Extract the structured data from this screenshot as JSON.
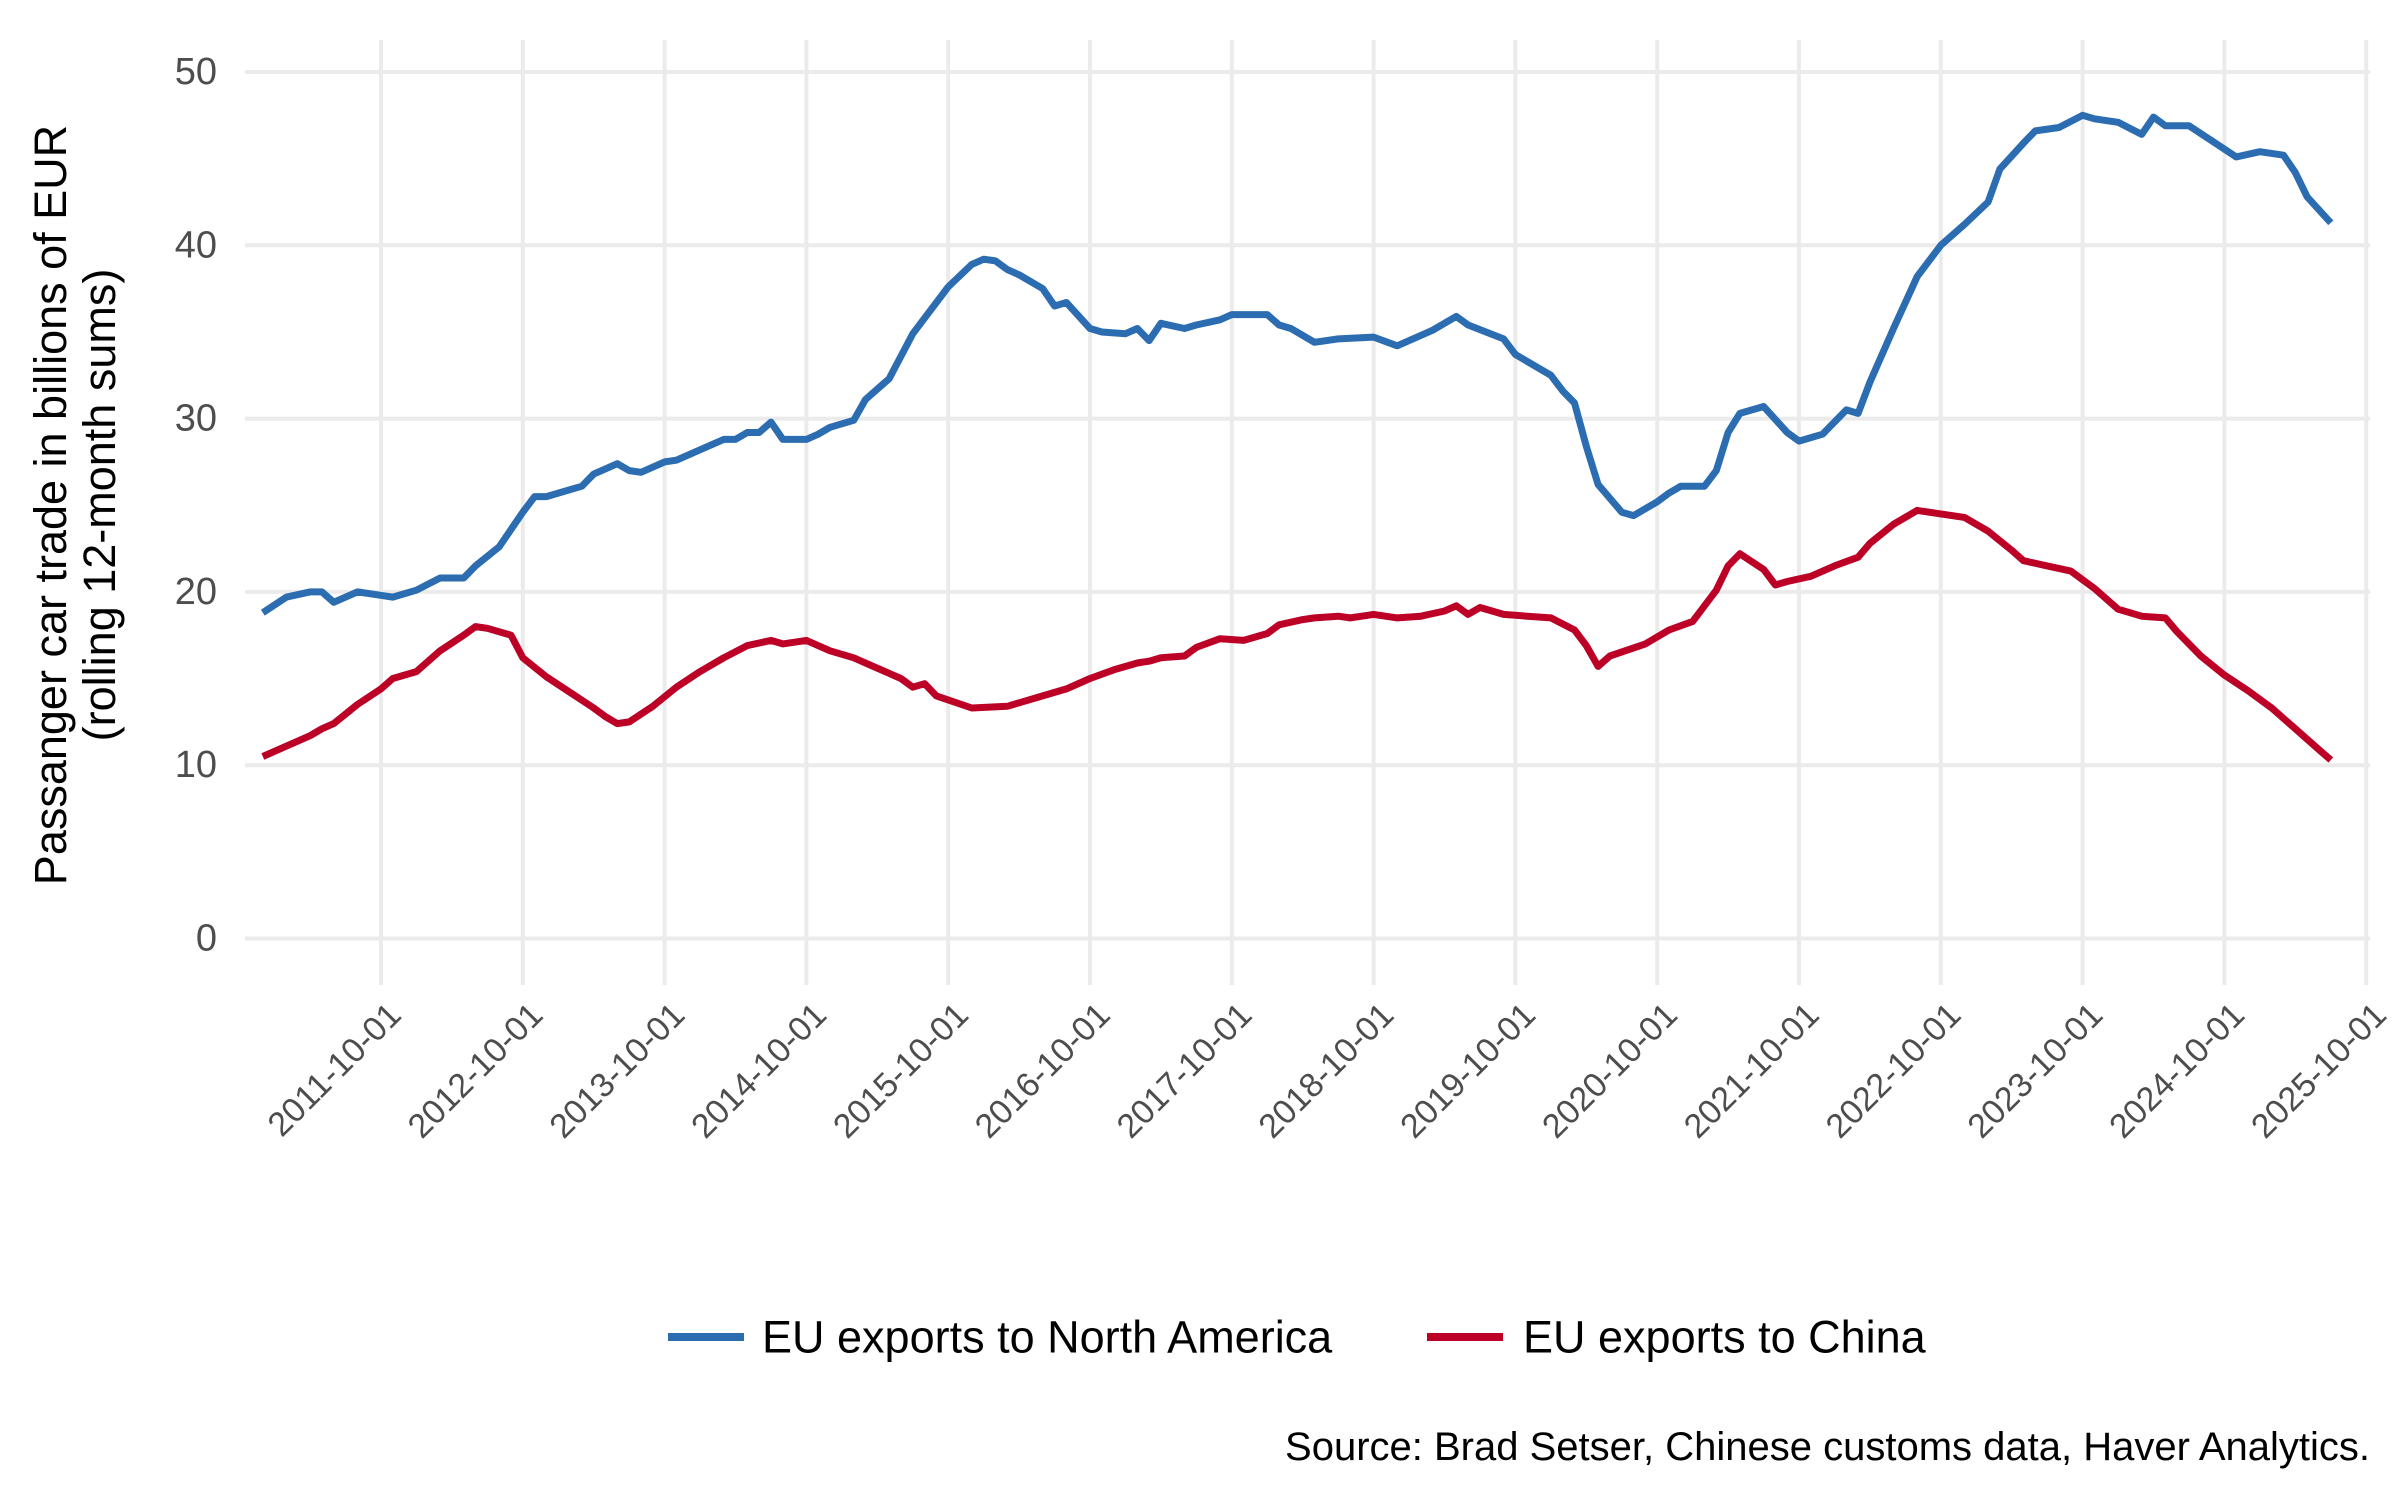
{
  "chart_data": {
    "type": "line",
    "title": "",
    "xlabel": "",
    "ylabel": [
      "Passanger car trade in billions of EUR",
      "(rolling 12-month sums)"
    ],
    "ylim": [
      0,
      50
    ],
    "yticks": [
      "0",
      "10",
      "20",
      "30",
      "40",
      "50"
    ],
    "xticks": [
      "2011-10-01",
      "2012-10-01",
      "2013-10-01",
      "2014-10-01",
      "2015-10-01",
      "2016-10-01",
      "2017-10-01",
      "2018-10-01",
      "2019-10-01",
      "2020-10-01",
      "2021-10-01",
      "2022-10-01",
      "2023-10-01",
      "2024-10-01",
      "2025-10-01"
    ],
    "grid": true,
    "legend_position": "bottom",
    "caption": "Source: Brad Setser, Chinese customs data, Haver Analytics.",
    "series": [
      {
        "name": "EU exports to North America",
        "color": "#2c6db2",
        "points": [
          [
            "2010-12",
            18.8
          ],
          [
            "2011-02",
            19.7
          ],
          [
            "2011-04",
            20.0
          ],
          [
            "2011-05",
            20.0
          ],
          [
            "2011-06",
            19.4
          ],
          [
            "2011-08",
            20.0
          ],
          [
            "2011-11",
            19.7
          ],
          [
            "2012-01",
            20.1
          ],
          [
            "2012-03",
            20.8
          ],
          [
            "2012-05",
            20.8
          ],
          [
            "2012-06",
            21.5
          ],
          [
            "2012-08",
            22.6
          ],
          [
            "2012-10",
            24.6
          ],
          [
            "2012-11",
            25.5
          ],
          [
            "2012-12",
            25.5
          ],
          [
            "2013-03",
            26.1
          ],
          [
            "2013-04",
            26.8
          ],
          [
            "2013-06",
            27.4
          ],
          [
            "2013-07",
            27.0
          ],
          [
            "2013-08",
            26.9
          ],
          [
            "2013-10",
            27.5
          ],
          [
            "2013-11",
            27.6
          ],
          [
            "2014-01",
            28.2
          ],
          [
            "2014-03",
            28.8
          ],
          [
            "2014-04",
            28.8
          ],
          [
            "2014-05",
            29.2
          ],
          [
            "2014-06",
            29.2
          ],
          [
            "2014-07",
            29.8
          ],
          [
            "2014-08",
            28.8
          ],
          [
            "2014-10",
            28.8
          ],
          [
            "2014-11",
            29.1
          ],
          [
            "2014-12",
            29.5
          ],
          [
            "2015-02",
            29.9
          ],
          [
            "2015-03",
            31.1
          ],
          [
            "2015-05",
            32.3
          ],
          [
            "2015-07",
            34.9
          ],
          [
            "2015-10",
            37.6
          ],
          [
            "2015-12",
            38.9
          ],
          [
            "2016-01",
            39.2
          ],
          [
            "2016-02",
            39.1
          ],
          [
            "2016-03",
            38.6
          ],
          [
            "2016-04",
            38.3
          ],
          [
            "2016-06",
            37.5
          ],
          [
            "2016-07",
            36.5
          ],
          [
            "2016-08",
            36.7
          ],
          [
            "2016-10",
            35.2
          ],
          [
            "2016-11",
            35.0
          ],
          [
            "2017-01",
            34.9
          ],
          [
            "2017-02",
            35.2
          ],
          [
            "2017-03",
            34.5
          ],
          [
            "2017-04",
            35.5
          ],
          [
            "2017-06",
            35.2
          ],
          [
            "2017-07",
            35.4
          ],
          [
            "2017-09",
            35.7
          ],
          [
            "2017-10",
            36.0
          ],
          [
            "2018-01",
            36.0
          ],
          [
            "2018-02",
            35.4
          ],
          [
            "2018-03",
            35.2
          ],
          [
            "2018-05",
            34.4
          ],
          [
            "2018-07",
            34.6
          ],
          [
            "2018-10",
            34.7
          ],
          [
            "2018-12",
            34.2
          ],
          [
            "2019-03",
            35.1
          ],
          [
            "2019-05",
            35.9
          ],
          [
            "2019-06",
            35.4
          ],
          [
            "2019-09",
            34.6
          ],
          [
            "2019-10",
            33.7
          ],
          [
            "2020-01",
            32.5
          ],
          [
            "2020-02",
            31.6
          ],
          [
            "2020-03",
            30.9
          ],
          [
            "2020-04",
            28.4
          ],
          [
            "2020-05",
            26.2
          ],
          [
            "2020-07",
            24.6
          ],
          [
            "2020-08",
            24.4
          ],
          [
            "2020-10",
            25.2
          ],
          [
            "2020-11",
            25.7
          ],
          [
            "2020-12",
            26.1
          ],
          [
            "2021-02",
            26.1
          ],
          [
            "2021-03",
            27.0
          ],
          [
            "2021-04",
            29.2
          ],
          [
            "2021-05",
            30.3
          ],
          [
            "2021-07",
            30.7
          ],
          [
            "2021-09",
            29.2
          ],
          [
            "2021-10",
            28.7
          ],
          [
            "2021-12",
            29.1
          ],
          [
            "2022-02",
            30.5
          ],
          [
            "2022-03",
            30.3
          ],
          [
            "2022-04",
            32.1
          ],
          [
            "2022-06",
            35.2
          ],
          [
            "2022-08",
            38.2
          ],
          [
            "2022-10",
            40.0
          ],
          [
            "2022-12",
            41.2
          ],
          [
            "2023-02",
            42.5
          ],
          [
            "2023-03",
            44.4
          ],
          [
            "2023-05",
            45.9
          ],
          [
            "2023-06",
            46.6
          ],
          [
            "2023-08",
            46.8
          ],
          [
            "2023-10",
            47.5
          ],
          [
            "2023-11",
            47.3
          ],
          [
            "2024-01",
            47.1
          ],
          [
            "2024-03",
            46.4
          ],
          [
            "2024-04",
            47.4
          ],
          [
            "2024-05",
            46.9
          ],
          [
            "2024-07",
            46.9
          ],
          [
            "2024-09",
            46.0
          ],
          [
            "2024-11",
            45.1
          ],
          [
            "2025-01",
            45.4
          ],
          [
            "2025-03",
            45.2
          ],
          [
            "2025-04",
            44.2
          ],
          [
            "2025-05",
            42.8
          ],
          [
            "2025-07",
            41.3
          ]
        ]
      },
      {
        "name": "EU exports to China",
        "color": "#bd0026",
        "points": [
          [
            "2010-12",
            10.5
          ],
          [
            "2011-02",
            11.1
          ],
          [
            "2011-04",
            11.7
          ],
          [
            "2011-05",
            12.1
          ],
          [
            "2011-06",
            12.4
          ],
          [
            "2011-08",
            13.5
          ],
          [
            "2011-10",
            14.4
          ],
          [
            "2011-11",
            15.0
          ],
          [
            "2012-01",
            15.4
          ],
          [
            "2012-03",
            16.6
          ],
          [
            "2012-05",
            17.5
          ],
          [
            "2012-06",
            18.0
          ],
          [
            "2012-07",
            17.9
          ],
          [
            "2012-09",
            17.5
          ],
          [
            "2012-10",
            16.2
          ],
          [
            "2012-12",
            15.1
          ],
          [
            "2013-02",
            14.2
          ],
          [
            "2013-04",
            13.3
          ],
          [
            "2013-05",
            12.8
          ],
          [
            "2013-06",
            12.4
          ],
          [
            "2013-07",
            12.5
          ],
          [
            "2013-09",
            13.4
          ],
          [
            "2013-11",
            14.5
          ],
          [
            "2014-01",
            15.4
          ],
          [
            "2014-03",
            16.2
          ],
          [
            "2014-05",
            16.9
          ],
          [
            "2014-07",
            17.2
          ],
          [
            "2014-08",
            17.0
          ],
          [
            "2014-10",
            17.2
          ],
          [
            "2014-12",
            16.6
          ],
          [
            "2015-02",
            16.2
          ],
          [
            "2015-04",
            15.6
          ],
          [
            "2015-06",
            15.0
          ],
          [
            "2015-07",
            14.5
          ],
          [
            "2015-08",
            14.7
          ],
          [
            "2015-09",
            14.0
          ],
          [
            "2015-12",
            13.3
          ],
          [
            "2016-03",
            13.4
          ],
          [
            "2016-04",
            13.6
          ],
          [
            "2016-06",
            14.0
          ],
          [
            "2016-08",
            14.4
          ],
          [
            "2016-10",
            15.0
          ],
          [
            "2016-12",
            15.5
          ],
          [
            "2017-02",
            15.9
          ],
          [
            "2017-03",
            16.0
          ],
          [
            "2017-04",
            16.2
          ],
          [
            "2017-06",
            16.3
          ],
          [
            "2017-07",
            16.8
          ],
          [
            "2017-09",
            17.3
          ],
          [
            "2017-11",
            17.2
          ],
          [
            "2018-01",
            17.6
          ],
          [
            "2018-02",
            18.1
          ],
          [
            "2018-04",
            18.4
          ],
          [
            "2018-05",
            18.5
          ],
          [
            "2018-07",
            18.6
          ],
          [
            "2018-08",
            18.5
          ],
          [
            "2018-09",
            18.6
          ],
          [
            "2018-10",
            18.7
          ],
          [
            "2018-12",
            18.5
          ],
          [
            "2019-02",
            18.6
          ],
          [
            "2019-04",
            18.9
          ],
          [
            "2019-05",
            19.2
          ],
          [
            "2019-06",
            18.7
          ],
          [
            "2019-07",
            19.1
          ],
          [
            "2019-09",
            18.7
          ],
          [
            "2019-11",
            18.6
          ],
          [
            "2020-01",
            18.5
          ],
          [
            "2020-03",
            17.8
          ],
          [
            "2020-04",
            16.9
          ],
          [
            "2020-05",
            15.7
          ],
          [
            "2020-06",
            16.3
          ],
          [
            "2020-09",
            17.0
          ],
          [
            "2020-11",
            17.8
          ],
          [
            "2021-01",
            18.3
          ],
          [
            "2021-02",
            19.2
          ],
          [
            "2021-03",
            20.1
          ],
          [
            "2021-04",
            21.5
          ],
          [
            "2021-05",
            22.2
          ],
          [
            "2021-07",
            21.3
          ],
          [
            "2021-08",
            20.4
          ],
          [
            "2021-09",
            20.6
          ],
          [
            "2021-11",
            20.9
          ],
          [
            "2022-01",
            21.5
          ],
          [
            "2022-03",
            22.0
          ],
          [
            "2022-04",
            22.8
          ],
          [
            "2022-06",
            23.9
          ],
          [
            "2022-08",
            24.7
          ],
          [
            "2022-10",
            24.5
          ],
          [
            "2022-12",
            24.3
          ],
          [
            "2023-02",
            23.5
          ],
          [
            "2023-04",
            22.4
          ],
          [
            "2023-05",
            21.8
          ],
          [
            "2023-07",
            21.5
          ],
          [
            "2023-09",
            21.2
          ],
          [
            "2023-11",
            20.2
          ],
          [
            "2024-01",
            19.0
          ],
          [
            "2024-03",
            18.6
          ],
          [
            "2024-05",
            18.5
          ],
          [
            "2024-06",
            17.7
          ],
          [
            "2024-08",
            16.3
          ],
          [
            "2024-10",
            15.2
          ],
          [
            "2024-12",
            14.3
          ],
          [
            "2025-02",
            13.3
          ],
          [
            "2025-04",
            12.1
          ],
          [
            "2025-06",
            10.9
          ],
          [
            "2025-07",
            10.3
          ]
        ]
      }
    ]
  }
}
